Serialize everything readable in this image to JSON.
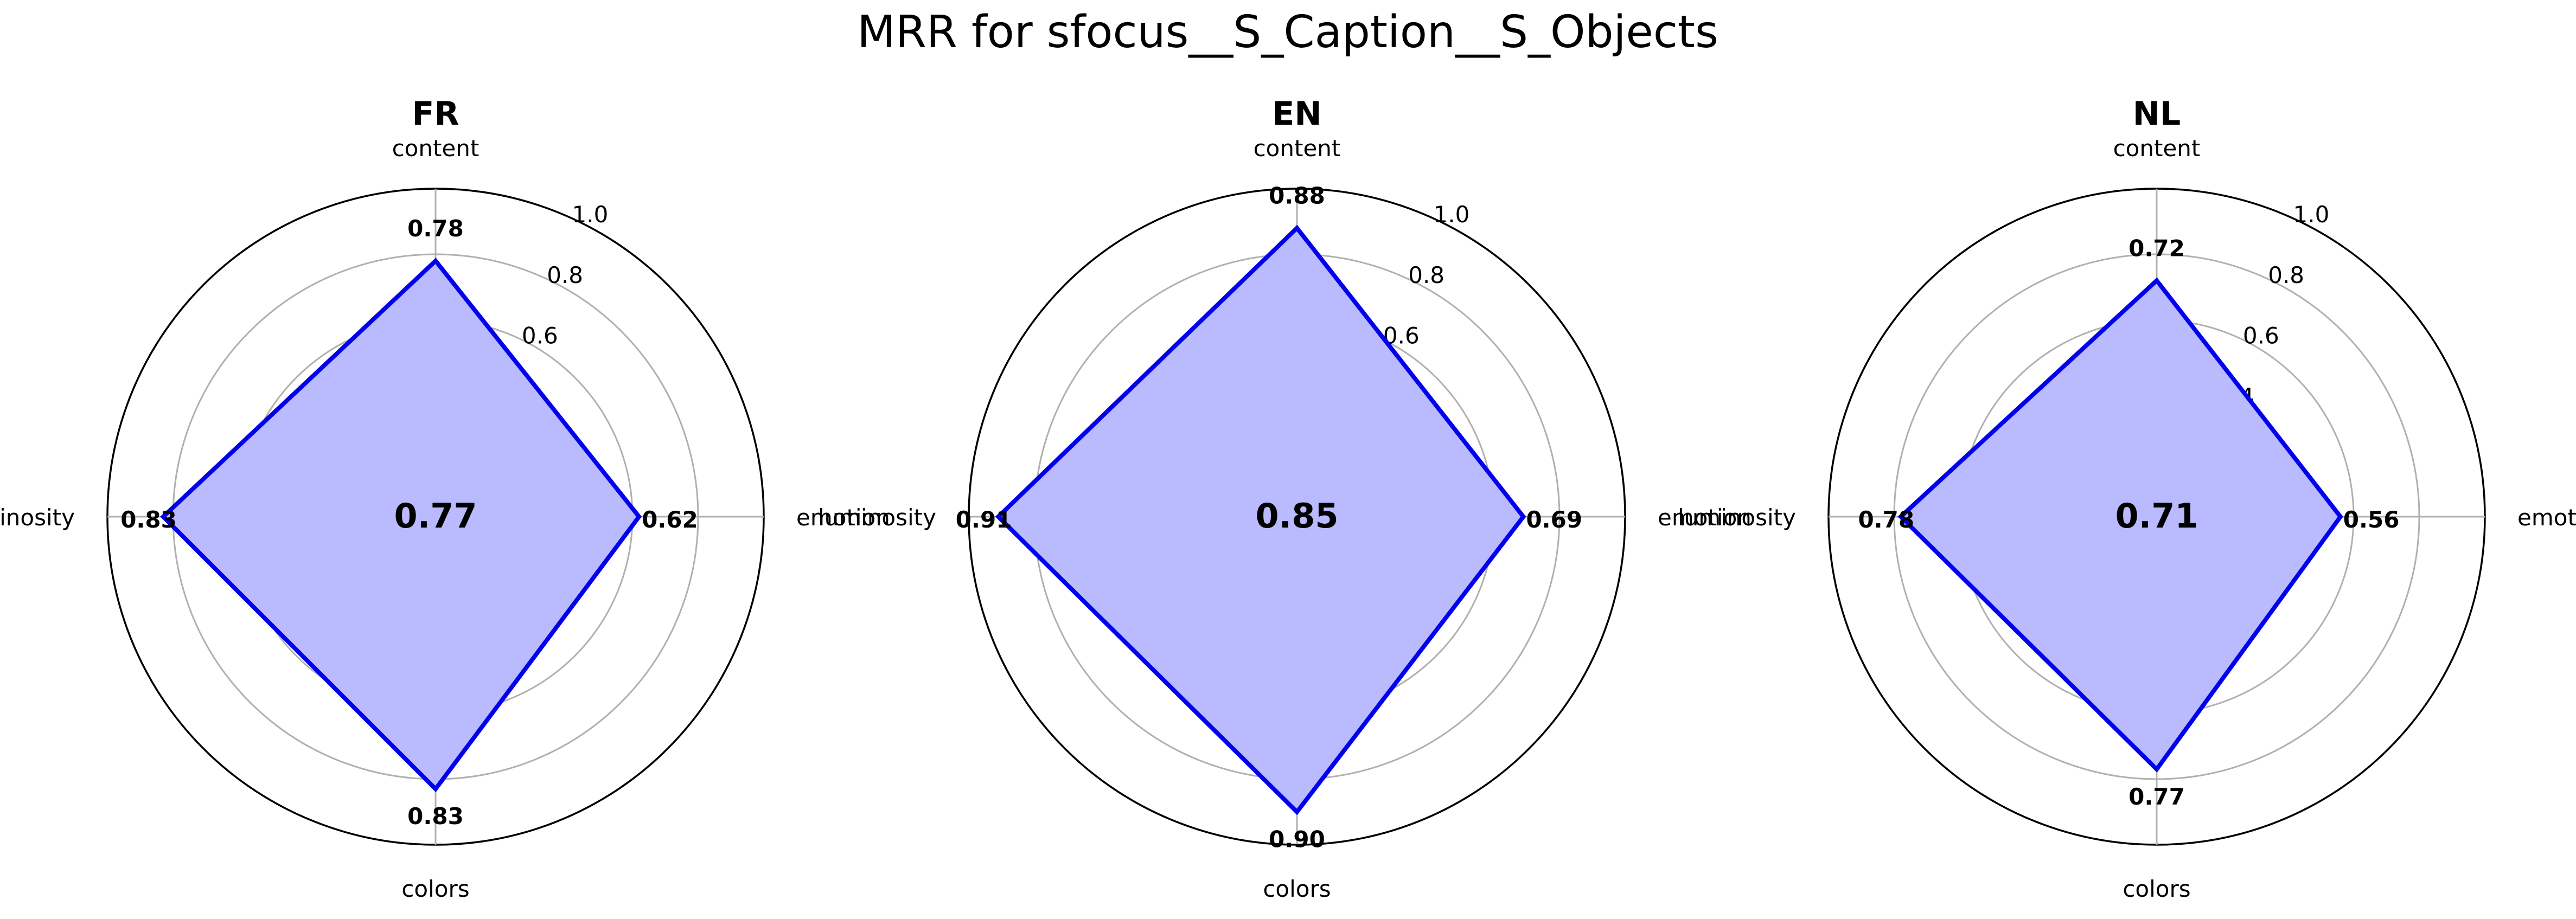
{
  "suptitle": "MRR for sfocus__S_Caption__S_Objects",
  "chart_data": [
    {
      "type": "radar",
      "title": "FR",
      "axes": [
        "content",
        "emotion",
        "colors",
        "luminosity"
      ],
      "values": [
        0.78,
        0.62,
        0.83,
        0.83
      ],
      "value_labels": [
        "0.78",
        "0.62",
        "0.83",
        "0.83"
      ],
      "center_value": "0.77",
      "rlim": [
        0,
        1.0
      ],
      "rticks": [
        "0.2",
        "0.4",
        "0.6",
        "0.8",
        "1.0"
      ],
      "grid": true,
      "line_color": "#0000ee",
      "fill_color": "#babaff"
    },
    {
      "type": "radar",
      "title": "EN",
      "axes": [
        "content",
        "emotion",
        "colors",
        "luminosity"
      ],
      "values": [
        0.88,
        0.69,
        0.9,
        0.91
      ],
      "value_labels": [
        "0.88",
        "0.69",
        "0.90",
        "0.91"
      ],
      "center_value": "0.85",
      "rlim": [
        0,
        1.0
      ],
      "rticks": [
        "0.2",
        "0.4",
        "0.6",
        "0.8",
        "1.0"
      ],
      "grid": true,
      "line_color": "#0000ee",
      "fill_color": "#babaff"
    },
    {
      "type": "radar",
      "title": "NL",
      "axes": [
        "content",
        "emotion",
        "colors",
        "luminosity"
      ],
      "values": [
        0.72,
        0.56,
        0.77,
        0.78
      ],
      "value_labels": [
        "0.72",
        "0.56",
        "0.77",
        "0.78"
      ],
      "center_value": "0.71",
      "rlim": [
        0,
        1.0
      ],
      "rticks": [
        "0.2",
        "0.4",
        "0.6",
        "0.8",
        "1.0"
      ],
      "grid": true,
      "line_color": "#0000ee",
      "fill_color": "#babaff"
    }
  ]
}
